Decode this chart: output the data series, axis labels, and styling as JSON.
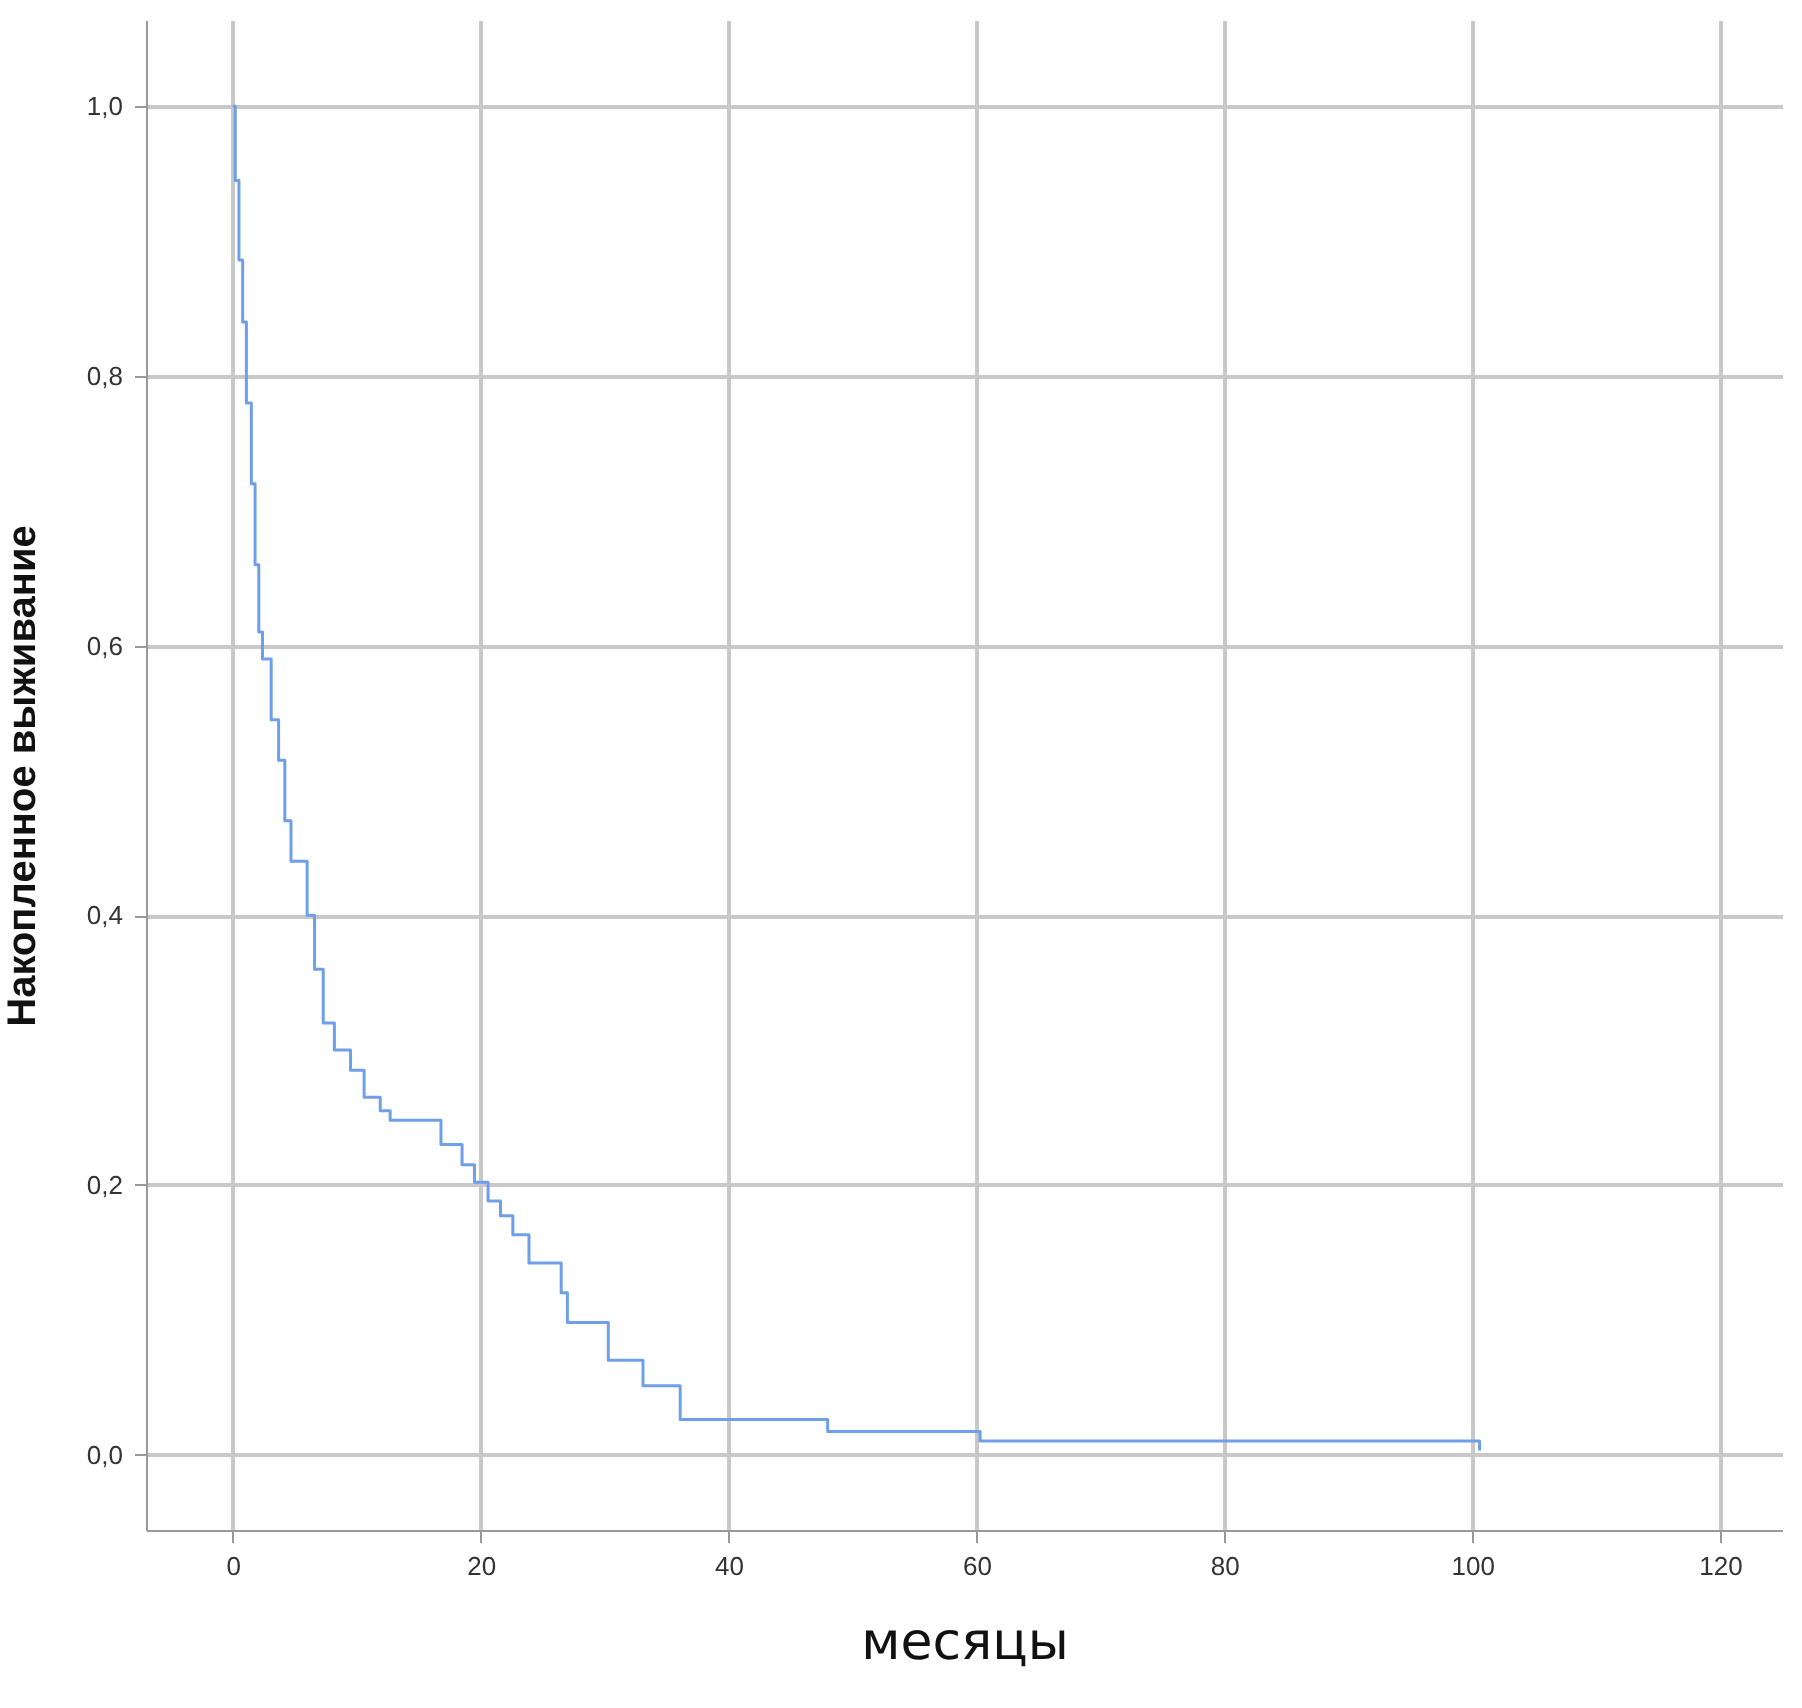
{
  "chart_data": {
    "type": "step",
    "xlabel": "месяцы",
    "ylabel": "Накопленное выживание",
    "x": [
      0,
      0.2,
      0.5,
      0.8,
      1.1,
      1.5,
      1.8,
      2.1,
      2.4,
      3.1,
      3.7,
      4.2,
      4.7,
      6.0,
      6.6,
      7.3,
      8.2,
      9.5,
      10.6,
      11.9,
      12.7,
      16.8,
      18.5,
      19.5,
      20.6,
      21.6,
      22.6,
      23.9,
      26.5,
      27,
      30.3,
      33.1,
      36.1,
      48,
      60.3,
      100.6
    ],
    "series": [
      {
        "color": "#6f9fe8",
        "values": [
          1.0,
          0.945,
          0.886,
          0.84,
          0.78,
          0.72,
          0.66,
          0.61,
          0.59,
          0.545,
          0.515,
          0.47,
          0.44,
          0.4,
          0.36,
          0.32,
          0.3,
          0.285,
          0.265,
          0.255,
          0.248,
          0.23,
          0.215,
          0.202,
          0.188,
          0.177,
          0.163,
          0.142,
          0.12,
          0.098,
          0.07,
          0.051,
          0.026,
          0.017,
          0.01,
          0.003
        ]
      }
    ],
    "xlim": [
      -7,
      125
    ],
    "xticks": [
      0,
      20,
      40,
      60,
      80,
      100,
      120
    ],
    "ylim": [
      -0.056,
      1.064
    ],
    "yticks": [
      {
        "value": 0,
        "label": "0,0"
      },
      {
        "value": 0.2,
        "label": "0,2"
      },
      {
        "value": 0.4,
        "label": "0,4"
      },
      {
        "value": 0.6,
        "label": "0,6"
      },
      {
        "value": 0.8,
        "label": "0,8"
      },
      {
        "value": 1,
        "label": "1,0"
      }
    ],
    "grid": true,
    "line_style": "solid"
  }
}
